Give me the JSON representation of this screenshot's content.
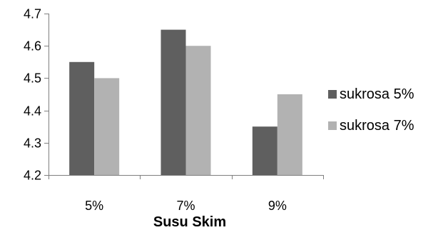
{
  "chart_data": {
    "type": "bar",
    "categories": [
      "5%",
      "7%",
      "9%"
    ],
    "series": [
      {
        "name": "sukrosa 5%",
        "values": [
          4.55,
          4.65,
          4.35
        ],
        "color": "#5f5f5f"
      },
      {
        "name": "sukrosa 7%",
        "values": [
          4.5,
          4.6,
          4.45
        ],
        "color": "#b2b2b2"
      }
    ],
    "xlabel": "Susu Skim",
    "ylabel": "",
    "ylim": [
      4.2,
      4.7
    ],
    "yticks": [
      4.2,
      4.3,
      4.4,
      4.5,
      4.6,
      4.7
    ],
    "grid": false,
    "legend_position": "right"
  }
}
